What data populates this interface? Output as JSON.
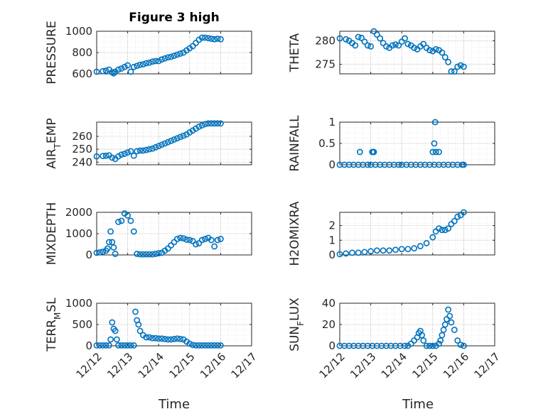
{
  "figure": {
    "title": "Figure 3 high",
    "xlabel": "Time",
    "x_ticks": [
      "12/12",
      "12/13",
      "12/14",
      "12/15",
      "12/16",
      "12/17"
    ],
    "marker_color": "#0072BD"
  },
  "chart_data": [
    {
      "type": "scatter",
      "ylabel_parts": [
        [
          "PRESSURE",
          null
        ]
      ],
      "xlim": [
        "12/12",
        "12/17"
      ],
      "ylim": [
        600,
        1000
      ],
      "yticks": [
        600,
        800,
        1000
      ],
      "grid": true,
      "series": [
        {
          "x": [
            0.0,
            0.2,
            0.3,
            0.4,
            0.5,
            0.55,
            0.6,
            0.7,
            0.8,
            0.9,
            1.0,
            1.1,
            1.2,
            1.3,
            1.4,
            1.5,
            1.6,
            1.7,
            1.8,
            1.9,
            2.0,
            2.1,
            2.2,
            2.3,
            2.4,
            2.5,
            2.6,
            2.7,
            2.8,
            2.9,
            3.0,
            3.1,
            3.2,
            3.3,
            3.4,
            3.5,
            3.6,
            3.7,
            3.8,
            3.9,
            4.0
          ],
          "y": [
            620,
            625,
            630,
            640,
            615,
            605,
            620,
            640,
            650,
            665,
            680,
            620,
            665,
            675,
            685,
            690,
            700,
            705,
            715,
            720,
            720,
            735,
            745,
            755,
            760,
            770,
            780,
            790,
            800,
            820,
            840,
            860,
            890,
            920,
            940,
            940,
            935,
            930,
            925,
            930,
            925
          ]
        }
      ]
    },
    {
      "type": "scatter",
      "ylabel_parts": [
        [
          "THETA",
          null
        ]
      ],
      "xlim": [
        "12/12",
        "12/17"
      ],
      "ylim": [
        273,
        282
      ],
      "yticks": [
        275,
        280
      ],
      "grid": true,
      "series": [
        {
          "x": [
            0.0,
            0.2,
            0.3,
            0.4,
            0.5,
            0.6,
            0.7,
            0.8,
            0.9,
            1.0,
            1.1,
            1.2,
            1.3,
            1.4,
            1.5,
            1.6,
            1.7,
            1.8,
            1.9,
            2.0,
            2.1,
            2.2,
            2.3,
            2.4,
            2.5,
            2.6,
            2.7,
            2.8,
            2.9,
            3.0,
            3.1,
            3.2,
            3.3,
            3.4,
            3.5,
            3.6,
            3.7,
            3.8,
            3.9,
            4.0
          ],
          "y": [
            280.5,
            280.3,
            280.0,
            279.5,
            279.0,
            280.8,
            280.6,
            279.8,
            279.0,
            278.8,
            282.0,
            281.3,
            280.5,
            279.5,
            278.8,
            278.5,
            279.0,
            279.2,
            279.0,
            279.8,
            280.5,
            279.3,
            279.0,
            278.5,
            278.2,
            278.8,
            279.3,
            278.5,
            278.0,
            277.8,
            278.2,
            278.0,
            277.5,
            276.5,
            275.5,
            273.5,
            273.5,
            274.5,
            274.8,
            274.5
          ]
        }
      ]
    },
    {
      "type": "scatter",
      "ylabel_parts": [
        [
          "AIR",
          null
        ],
        [
          "T",
          "sub"
        ],
        [
          "EMP",
          null
        ]
      ],
      "xlim": [
        "12/12",
        "12/17"
      ],
      "ylim": [
        238,
        271
      ],
      "yticks": [
        240,
        250,
        260
      ],
      "grid": true,
      "series": [
        {
          "x": [
            0.0,
            0.2,
            0.3,
            0.4,
            0.5,
            0.6,
            0.7,
            0.8,
            0.9,
            1.0,
            1.1,
            1.2,
            1.3,
            1.4,
            1.5,
            1.6,
            1.7,
            1.8,
            1.9,
            2.0,
            2.1,
            2.2,
            2.3,
            2.4,
            2.5,
            2.6,
            2.7,
            2.8,
            2.9,
            3.0,
            3.1,
            3.2,
            3.3,
            3.4,
            3.5,
            3.6,
            3.7,
            3.8,
            3.9,
            4.0
          ],
          "y": [
            244.5,
            244.8,
            245.0,
            245.3,
            243.5,
            242.5,
            244.5,
            245.8,
            246.5,
            247.5,
            248.5,
            245.0,
            248.5,
            249.0,
            249.0,
            249.5,
            250.0,
            250.5,
            251.5,
            252.5,
            253.5,
            254.5,
            255.5,
            256.5,
            257.5,
            258.5,
            259.5,
            260.5,
            261.5,
            263.0,
            264.5,
            266.0,
            267.5,
            268.5,
            269.5,
            270.0,
            270.0,
            270.0,
            270.0,
            270.0
          ]
        }
      ]
    },
    {
      "type": "scatter",
      "ylabel_parts": [
        [
          "RAINFALL",
          null
        ]
      ],
      "xlim": [
        "12/12",
        "12/17"
      ],
      "ylim": [
        0,
        1
      ],
      "yticks": [
        0,
        0.5,
        1
      ],
      "grid": true,
      "series": [
        {
          "x": [
            0.0,
            0.15,
            0.3,
            0.45,
            0.6,
            0.75,
            0.9,
            1.0,
            1.15,
            1.3,
            1.45,
            1.6,
            1.75,
            1.9,
            2.0,
            2.15,
            2.3,
            2.45,
            2.6,
            2.75,
            2.9,
            3.05,
            3.2,
            3.35,
            3.5,
            3.65,
            3.8,
            3.95,
            4.0,
            0.65,
            1.05,
            1.08,
            1.1,
            3.0,
            3.05,
            3.08,
            3.1,
            3.2
          ],
          "y": [
            0,
            0,
            0,
            0,
            0,
            0,
            0,
            0,
            0,
            0,
            0,
            0,
            0,
            0,
            0,
            0,
            0,
            0,
            0,
            0,
            0,
            0,
            0,
            0,
            0,
            0,
            0,
            0,
            0,
            0.3,
            0.3,
            0.3,
            0.3,
            0.3,
            0.5,
            1.0,
            0.3,
            0.3
          ]
        }
      ]
    },
    {
      "type": "scatter",
      "ylabel_parts": [
        [
          "MIXDEPTH",
          null
        ]
      ],
      "xlim": [
        "12/12",
        "12/17"
      ],
      "ylim": [
        0,
        2000
      ],
      "yticks": [
        0,
        1000,
        2000
      ],
      "grid": true,
      "series": [
        {
          "x": [
            0.0,
            0.1,
            0.2,
            0.3,
            0.35,
            0.4,
            0.45,
            0.5,
            0.55,
            0.6,
            0.7,
            0.8,
            0.9,
            1.0,
            1.1,
            1.2,
            1.3,
            1.4,
            1.5,
            1.6,
            1.7,
            1.8,
            1.9,
            2.0,
            2.1,
            2.2,
            2.3,
            2.4,
            2.5,
            2.6,
            2.7,
            2.8,
            2.9,
            3.0,
            3.1,
            3.2,
            3.3,
            3.4,
            3.5,
            3.6,
            3.7,
            3.8,
            3.9,
            4.0
          ],
          "y": [
            100,
            120,
            150,
            200,
            300,
            600,
            1100,
            600,
            350,
            50,
            1550,
            1600,
            1950,
            1850,
            1600,
            1100,
            50,
            30,
            30,
            30,
            30,
            30,
            50,
            80,
            100,
            200,
            300,
            450,
            600,
            750,
            800,
            780,
            720,
            700,
            650,
            500,
            550,
            700,
            750,
            800,
            700,
            400,
            700,
            750
          ]
        }
      ]
    },
    {
      "type": "scatter",
      "ylabel_parts": [
        [
          "H2OMIXRA",
          null
        ]
      ],
      "xlim": [
        "12/12",
        "12/17"
      ],
      "ylim": [
        0,
        2.9
      ],
      "yticks": [
        0,
        1,
        2
      ],
      "grid": true,
      "series": [
        {
          "x": [
            0.0,
            0.2,
            0.4,
            0.6,
            0.8,
            1.0,
            1.2,
            1.4,
            1.6,
            1.8,
            2.0,
            2.2,
            2.4,
            2.6,
            2.8,
            3.0,
            3.1,
            3.2,
            3.3,
            3.4,
            3.5,
            3.6,
            3.7,
            3.8,
            3.9,
            4.0
          ],
          "y": [
            0.05,
            0.1,
            0.15,
            0.15,
            0.2,
            0.25,
            0.3,
            0.3,
            0.3,
            0.35,
            0.4,
            0.4,
            0.45,
            0.6,
            0.8,
            1.2,
            1.6,
            1.8,
            1.7,
            1.7,
            1.8,
            2.1,
            2.3,
            2.6,
            2.7,
            2.9
          ]
        }
      ]
    },
    {
      "type": "scatter",
      "ylabel_parts": [
        [
          "TERR",
          null
        ],
        [
          "M",
          "sub"
        ],
        [
          "SL",
          null
        ]
      ],
      "xlim": [
        "12/12",
        "12/17"
      ],
      "ylim": [
        0,
        1000
      ],
      "yticks": [
        0,
        500,
        1000
      ],
      "grid": true,
      "series": [
        {
          "x": [
            0.0,
            0.1,
            0.2,
            0.3,
            0.4,
            0.45,
            0.5,
            0.55,
            0.6,
            0.65,
            0.7,
            0.8,
            0.9,
            1.0,
            1.1,
            1.2,
            1.25,
            1.3,
            1.35,
            1.4,
            1.5,
            1.6,
            1.7,
            1.8,
            1.9,
            2.0,
            2.1,
            2.2,
            2.3,
            2.4,
            2.5,
            2.6,
            2.7,
            2.8,
            2.9,
            3.0,
            3.1,
            3.2,
            3.3,
            3.4,
            3.5,
            3.6,
            3.7,
            3.8,
            3.9,
            4.0
          ],
          "y": [
            10,
            10,
            10,
            10,
            10,
            150,
            550,
            400,
            350,
            150,
            10,
            10,
            10,
            10,
            10,
            10,
            800,
            600,
            500,
            350,
            250,
            200,
            200,
            180,
            180,
            170,
            170,
            160,
            150,
            150,
            160,
            170,
            160,
            150,
            100,
            50,
            20,
            10,
            10,
            10,
            10,
            10,
            10,
            10,
            10,
            10
          ]
        }
      ]
    },
    {
      "type": "scatter",
      "ylabel_parts": [
        [
          "SUN",
          null
        ],
        [
          "F",
          "sub"
        ],
        [
          "LUX",
          null
        ]
      ],
      "xlim": [
        "12/12",
        "12/17"
      ],
      "ylim": [
        0,
        40
      ],
      "yticks": [
        0,
        20,
        40
      ],
      "grid": true,
      "series": [
        {
          "x": [
            0.0,
            0.15,
            0.3,
            0.45,
            0.6,
            0.75,
            0.9,
            1.05,
            1.2,
            1.35,
            1.5,
            1.65,
            1.8,
            1.95,
            2.1,
            2.2,
            2.3,
            2.4,
            2.5,
            2.55,
            2.6,
            2.65,
            2.7,
            2.8,
            2.9,
            3.0,
            3.1,
            3.2,
            3.25,
            3.3,
            3.35,
            3.4,
            3.45,
            3.5,
            3.55,
            3.6,
            3.7,
            3.8,
            3.9,
            4.0
          ],
          "y": [
            0,
            0,
            0,
            0,
            0,
            0,
            0,
            0,
            0,
            0,
            0,
            0,
            0,
            0,
            0,
            0,
            2,
            5,
            8,
            12,
            14,
            10,
            5,
            0,
            0,
            0,
            0,
            2,
            5,
            10,
            15,
            20,
            25,
            34,
            28,
            22,
            15,
            5,
            1,
            0
          ]
        }
      ]
    }
  ]
}
